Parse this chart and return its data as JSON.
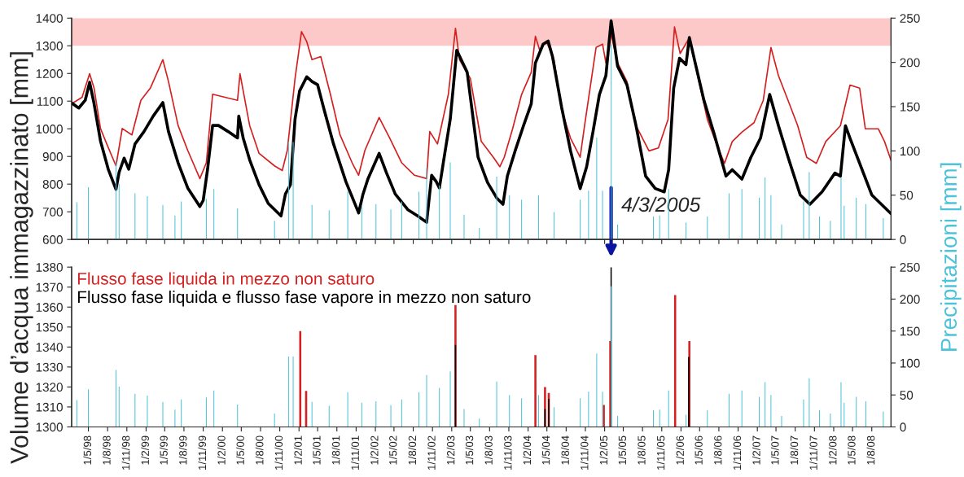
{
  "chart_data": [
    {
      "type": "line",
      "ylabel": "Volume d’acqua immagazzinato [mm]",
      "y2label": "Precipitazioni [mm]",
      "xlim": [
        "1998-02-10",
        "2008-11-01"
      ],
      "xticks": [
        {
          "value": "1998-05-01",
          "label": null
        },
        {
          "value": "1998-08-01",
          "label": null
        },
        {
          "value": "1998-11-01",
          "label": null
        },
        {
          "value": "1999-02-01",
          "label": null
        },
        {
          "value": "1999-05-01",
          "label": null
        },
        {
          "value": "1999-08-01",
          "label": null
        },
        {
          "value": "1999-11-01",
          "label": null
        },
        {
          "value": "2000-02-01",
          "label": null
        },
        {
          "value": "2000-05-01",
          "label": null
        },
        {
          "value": "2000-08-01",
          "label": null
        },
        {
          "value": "2000-11-01",
          "label": null
        },
        {
          "value": "2001-02-01",
          "label": null
        },
        {
          "value": "2001-05-01",
          "label": null
        },
        {
          "value": "2001-08-01",
          "label": null
        },
        {
          "value": "2001-11-01",
          "label": null
        },
        {
          "value": "2002-02-01",
          "label": null
        },
        {
          "value": "2002-05-01",
          "label": null
        },
        {
          "value": "2002-08-01",
          "label": null
        },
        {
          "value": "2002-11-01",
          "label": null
        },
        {
          "value": "2003-02-01",
          "label": null
        },
        {
          "value": "2003-05-01",
          "label": null
        },
        {
          "value": "2003-08-01",
          "label": null
        },
        {
          "value": "2003-11-01",
          "label": null
        },
        {
          "value": "2004-02-01",
          "label": null
        },
        {
          "value": "2004-05-01",
          "label": null
        },
        {
          "value": "2004-08-01",
          "label": null
        },
        {
          "value": "2004-11-01",
          "label": null
        },
        {
          "value": "2005-02-01",
          "label": null
        },
        {
          "value": "2005-05-01",
          "label": null
        },
        {
          "value": "2005-08-01",
          "label": null
        },
        {
          "value": "2005-11-01",
          "label": null
        },
        {
          "value": "2006-02-01",
          "label": null
        },
        {
          "value": "2006-05-01",
          "label": null
        },
        {
          "value": "2006-08-01",
          "label": null
        },
        {
          "value": "2006-11-01",
          "label": null
        },
        {
          "value": "2007-02-01",
          "label": null
        },
        {
          "value": "2007-05-01",
          "label": null
        },
        {
          "value": "2007-08-01",
          "label": null
        },
        {
          "value": "2007-11-01",
          "label": null
        },
        {
          "value": "2008-02-01",
          "label": null
        },
        {
          "value": "2008-05-01",
          "label": null
        },
        {
          "value": "2008-08-01",
          "label": null
        }
      ],
      "ylim": [
        600,
        1400
      ],
      "yticks": [
        600,
        700,
        800,
        900,
        1000,
        1100,
        1200,
        1300,
        1400
      ],
      "y2lim": [
        0,
        250
      ],
      "y2ticks": [
        0,
        50,
        100,
        150,
        200,
        250
      ],
      "tick_labels": "y",
      "bands": [
        {
          "axis": "y",
          "from": 1300,
          "to": 1400,
          "color": "#fcc8c8"
        }
      ],
      "annotations": [
        {
          "text": "4/3/2005",
          "x": "2005-03-04",
          "y": 795
        }
      ],
      "series": [
        {
          "type": "bar",
          "axis": "y2",
          "color": "#4cc3da",
          "x": [
            "1998-03-07",
            "1998-05-01",
            "1998-09-10",
            "1998-09-25",
            "1998-12-10",
            "1999-02-07",
            "1999-04-22",
            "1999-06-19",
            "1999-07-19",
            "1999-11-16",
            "1999-12-22",
            "2000-04-13",
            "2000-10-07",
            "2000-12-13",
            "2001-01-04",
            "2001-04-04",
            "2001-06-25",
            "2001-09-22",
            "2001-11-28",
            "2002-02-04",
            "2002-04-16",
            "2002-06-07",
            "2002-08-28",
            "2002-10-04",
            "2002-12-04",
            "2003-01-25",
            "2003-04-01",
            "2003-06-13",
            "2003-09-04",
            "2003-11-04",
            "2004-01-01",
            "2004-03-22",
            "2004-06-04",
            "2004-10-07",
            "2004-11-16",
            "2004-12-25",
            "2005-01-22",
            "2005-03-04",
            "2005-04-04",
            "2005-09-22",
            "2005-10-22",
            "2005-12-04",
            "2006-02-25",
            "2006-06-07",
            "2006-09-19",
            "2006-11-19",
            "2007-02-10",
            "2007-03-10",
            "2007-04-07",
            "2007-05-28",
            "2007-09-10",
            "2007-10-07",
            "2007-11-25",
            "2008-01-16",
            "2008-03-07",
            "2008-03-22",
            "2008-05-19",
            "2008-07-04",
            "2008-09-25"
          ],
          "values": [
            42,
            59,
            89,
            63,
            52,
            49,
            39,
            27,
            43,
            46,
            57,
            35,
            21,
            110,
            110,
            39,
            33,
            54,
            38,
            40,
            34,
            43,
            54,
            81,
            61,
            87,
            28,
            13,
            71,
            50,
            45,
            50,
            31,
            45,
            55,
            115,
            55,
            220,
            17,
            26,
            27,
            57,
            19,
            26,
            52,
            57,
            47,
            70,
            50,
            17,
            43,
            76,
            26,
            21,
            70,
            38,
            47,
            40,
            24
          ]
        },
        {
          "color": "#d42020",
          "x": [
            "1998-02-13",
            "1998-04-01",
            "1998-05-07",
            "1998-05-28",
            "1998-06-28",
            "1998-07-28",
            "1998-09-10",
            "1998-09-25",
            "1998-10-10",
            "1998-11-25",
            "1999-01-07",
            "1999-02-22",
            "1999-04-22",
            "1999-05-19",
            "1999-07-04",
            "1999-08-19",
            "1999-10-16",
            "1999-11-16",
            "1999-12-16",
            "2000-02-13",
            "2000-04-13",
            "2000-04-25",
            "2000-06-10",
            "2000-07-25",
            "2000-10-07",
            "2000-11-13",
            "2000-12-07",
            "2001-01-13",
            "2001-02-13",
            "2001-03-10",
            "2001-04-04",
            "2001-05-16",
            "2001-07-01",
            "2001-08-16",
            "2001-10-13",
            "2001-11-13",
            "2001-12-13",
            "2002-02-19",
            "2002-04-10",
            "2002-06-07",
            "2002-08-07",
            "2002-10-04",
            "2002-10-19",
            "2002-11-25",
            "2003-01-16",
            "2003-02-19",
            "2003-03-10",
            "2003-05-01",
            "2003-06-22",
            "2003-08-19",
            "2003-09-19",
            "2003-10-10",
            "2003-11-19",
            "2004-01-01",
            "2004-02-16",
            "2004-03-07",
            "2004-03-28",
            "2004-04-28",
            "2004-06-04",
            "2004-07-10",
            "2004-08-22",
            "2004-10-07",
            "2004-10-28",
            "2004-12-22",
            "2005-01-22",
            "2005-02-07",
            "2005-03-04",
            "2005-04-04",
            "2005-05-19",
            "2005-07-01",
            "2005-09-01",
            "2005-10-16",
            "2005-12-01",
            "2006-01-01",
            "2006-01-28",
            "2006-03-13",
            "2006-04-25",
            "2006-06-07",
            "2006-07-22",
            "2006-08-28",
            "2006-10-04",
            "2006-11-19",
            "2007-01-16",
            "2007-03-01",
            "2007-04-07",
            "2007-05-13",
            "2007-06-28",
            "2007-08-13",
            "2007-09-25",
            "2007-11-10",
            "2007-12-25",
            "2008-03-04",
            "2008-04-19",
            "2008-06-04",
            "2008-07-01",
            "2008-09-01",
            "2008-10-01",
            "2008-11-01"
          ],
          "values": [
            1092,
            1114,
            1199,
            1148,
            1001,
            945,
            866,
            933,
            1001,
            978,
            1103,
            1148,
            1250,
            1171,
            1012,
            922,
            820,
            877,
            1125,
            1114,
            1103,
            1199,
            1012,
            911,
            866,
            849,
            922,
            1182,
            1351,
            1315,
            1250,
            1261,
            1125,
            978,
            877,
            832,
            922,
            1041,
            967,
            877,
            832,
            820,
            990,
            945,
            1125,
            1363,
            1250,
            1182,
            955,
            897,
            863,
            897,
            1000,
            1124,
            1204,
            1334,
            1283,
            1317,
            1249,
            1068,
            966,
            897,
            1011,
            1294,
            1306,
            1238,
            1343,
            1238,
            1170,
            1011,
            920,
            931,
            1034,
            1368,
            1272,
            1329,
            1181,
            1034,
            943,
            875,
            954,
            988,
            1022,
            1102,
            1294,
            1192,
            1102,
            1011,
            897,
            875,
            954,
            1011,
            1158,
            1147,
            1000,
            1000,
            954,
            886
          ]
        },
        {
          "color": "#000000",
          "x": [
            "1998-02-13",
            "1998-03-16",
            "1998-04-16",
            "1998-05-07",
            "1998-05-28",
            "1998-06-28",
            "1998-08-04",
            "1998-09-10",
            "1998-09-25",
            "1998-10-19",
            "1998-11-10",
            "1998-12-10",
            "1999-01-22",
            "1999-03-07",
            "1999-04-22",
            "1999-05-19",
            "1999-07-04",
            "1999-08-19",
            "1999-10-16",
            "1999-11-01",
            "1999-11-22",
            "1999-12-16",
            "2000-01-13",
            "2000-02-28",
            "2000-04-13",
            "2000-04-19",
            "2000-05-10",
            "2000-06-10",
            "2000-07-25",
            "2000-09-07",
            "2000-11-07",
            "2000-11-28",
            "2000-12-22",
            "2001-01-13",
            "2001-02-04",
            "2001-03-10",
            "2001-04-04",
            "2001-05-01",
            "2001-06-01",
            "2001-07-16",
            "2001-09-13",
            "2001-11-13",
            "2001-12-04",
            "2001-12-28",
            "2002-02-19",
            "2002-03-25",
            "2002-05-07",
            "2002-07-07",
            "2002-08-22",
            "2002-10-04",
            "2002-10-28",
            "2002-11-19",
            "2002-12-04",
            "2002-12-25",
            "2003-01-25",
            "2003-02-25",
            "2003-04-16",
            "2003-06-07",
            "2003-07-22",
            "2003-09-04",
            "2003-10-04",
            "2003-10-25",
            "2003-12-01",
            "2004-01-10",
            "2004-02-16",
            "2004-03-07",
            "2004-04-13",
            "2004-05-07",
            "2004-05-28",
            "2004-07-10",
            "2004-08-22",
            "2004-10-07",
            "2004-11-07",
            "2004-12-07",
            "2005-01-07",
            "2005-02-07",
            "2005-03-04",
            "2005-04-04",
            "2005-05-19",
            "2005-07-01",
            "2005-08-16",
            "2005-10-01",
            "2005-11-13",
            "2005-12-04",
            "2005-12-28",
            "2006-01-25",
            "2006-02-25",
            "2006-03-13",
            "2006-04-10",
            "2006-05-22",
            "2006-07-07",
            "2006-09-04",
            "2006-10-04",
            "2006-11-19",
            "2007-01-01",
            "2007-02-16",
            "2007-04-01",
            "2007-05-13",
            "2007-06-28",
            "2007-08-25",
            "2007-10-10",
            "2007-12-07",
            "2008-02-07",
            "2008-03-04",
            "2008-03-28",
            "2008-04-19",
            "2008-06-04",
            "2008-08-01",
            "2008-09-16",
            "2008-11-01"
          ],
          "values": [
            1092,
            1075,
            1103,
            1168,
            1092,
            956,
            854,
            781,
            843,
            894,
            854,
            945,
            990,
            1046,
            1095,
            990,
            877,
            786,
            719,
            741,
            854,
            1012,
            1012,
            990,
            967,
            1046,
            967,
            888,
            798,
            730,
            685,
            764,
            798,
            1035,
            1137,
            1188,
            1171,
            1159,
            1069,
            945,
            809,
            696,
            764,
            820,
            911,
            843,
            764,
            707,
            685,
            662,
            832,
            809,
            786,
            888,
            1035,
            1284,
            1204,
            897,
            806,
            750,
            727,
            829,
            920,
            1011,
            1090,
            1238,
            1306,
            1317,
            1260,
            1079,
            920,
            784,
            863,
            988,
            1124,
            1192,
            1390,
            1226,
            1158,
            1011,
            829,
            784,
            772,
            852,
            1147,
            1255,
            1232,
            1330,
            1238,
            1102,
            988,
            829,
            852,
            818,
            897,
            966,
            1124,
            1011,
            897,
            761,
            727,
            772,
            840,
            829,
            1011,
            966,
            875,
            761,
            727,
            693
          ]
        }
      ]
    },
    {
      "type": "bar",
      "xlim": [
        "1998-02-10",
        "2008-11-01"
      ],
      "xticks": [
        {
          "value": "1998-05-01",
          "label": "1/5/98"
        },
        {
          "value": "1998-08-01",
          "label": "1/8/98"
        },
        {
          "value": "1998-11-01",
          "label": "1/11/98"
        },
        {
          "value": "1999-02-01",
          "label": "1/2/99"
        },
        {
          "value": "1999-05-01",
          "label": "1/5/99"
        },
        {
          "value": "1999-08-01",
          "label": "1/8/99"
        },
        {
          "value": "1999-11-01",
          "label": "1/11/99"
        },
        {
          "value": "2000-02-01",
          "label": "1/2/00"
        },
        {
          "value": "2000-05-01",
          "label": "1/5/00"
        },
        {
          "value": "2000-08-01",
          "label": "1/8/00"
        },
        {
          "value": "2000-11-01",
          "label": "1/11/00"
        },
        {
          "value": "2001-02-01",
          "label": "1/2/01"
        },
        {
          "value": "2001-05-01",
          "label": "1/5/01"
        },
        {
          "value": "2001-08-01",
          "label": "1/8/01"
        },
        {
          "value": "2001-11-01",
          "label": "1/11/01"
        },
        {
          "value": "2002-02-01",
          "label": "1/2/02"
        },
        {
          "value": "2002-05-01",
          "label": "1/5/02"
        },
        {
          "value": "2002-08-01",
          "label": "1/8/02"
        },
        {
          "value": "2002-11-01",
          "label": "1/11/02"
        },
        {
          "value": "2003-02-01",
          "label": "1/2/03"
        },
        {
          "value": "2003-05-01",
          "label": "1/5/03"
        },
        {
          "value": "2003-08-01",
          "label": "1/8/03"
        },
        {
          "value": "2003-11-01",
          "label": "1/11/03"
        },
        {
          "value": "2004-02-01",
          "label": "1/2/04"
        },
        {
          "value": "2004-05-01",
          "label": "1/5/04"
        },
        {
          "value": "2004-08-01",
          "label": "1/8/04"
        },
        {
          "value": "2004-11-01",
          "label": "1/11/04"
        },
        {
          "value": "2005-02-01",
          "label": "1/2/05"
        },
        {
          "value": "2005-05-01",
          "label": "1/5/05"
        },
        {
          "value": "2005-08-01",
          "label": "1/8/05"
        },
        {
          "value": "2005-11-01",
          "label": "1/11/05"
        },
        {
          "value": "2006-02-01",
          "label": "1/2/06"
        },
        {
          "value": "2006-05-01",
          "label": "1/5/06"
        },
        {
          "value": "2006-08-01",
          "label": "1/8/06"
        },
        {
          "value": "2006-11-01",
          "label": "1/11/06"
        },
        {
          "value": "2007-02-01",
          "label": "1/2/07"
        },
        {
          "value": "2007-05-01",
          "label": "1/5/07"
        },
        {
          "value": "2007-08-01",
          "label": "1/8/07"
        },
        {
          "value": "2007-11-01",
          "label": "1/11/07"
        },
        {
          "value": "2008-02-01",
          "label": "1/2/08"
        },
        {
          "value": "2008-05-01",
          "label": "1/5/08"
        },
        {
          "value": "2008-08-01",
          "label": "1/8/08"
        }
      ],
      "ylim": [
        1300,
        1380
      ],
      "yticks": [
        1300,
        1310,
        1320,
        1330,
        1340,
        1350,
        1360,
        1370,
        1380
      ],
      "y2lim": [
        0,
        250
      ],
      "y2ticks": [
        0,
        50,
        100,
        150,
        200,
        250
      ],
      "legend": "top left",
      "series": [
        {
          "type": "bar",
          "axis": "y2",
          "color": "#4cc3da",
          "x": [
            "1998-03-07",
            "1998-05-01",
            "1998-09-10",
            "1998-09-25",
            "1998-12-10",
            "1999-02-07",
            "1999-04-22",
            "1999-06-19",
            "1999-07-19",
            "1999-11-16",
            "1999-12-22",
            "2000-04-13",
            "2000-10-07",
            "2000-12-13",
            "2001-01-04",
            "2001-04-04",
            "2001-06-25",
            "2001-09-22",
            "2001-11-28",
            "2002-02-04",
            "2002-04-16",
            "2002-06-07",
            "2002-08-28",
            "2002-10-04",
            "2002-12-04",
            "2003-01-25",
            "2003-04-01",
            "2003-06-13",
            "2003-09-04",
            "2003-11-04",
            "2004-01-01",
            "2004-03-22",
            "2004-06-04",
            "2004-10-07",
            "2004-11-16",
            "2004-12-25",
            "2005-01-22",
            "2005-03-04",
            "2005-04-04",
            "2005-09-22",
            "2005-10-22",
            "2005-12-04",
            "2006-02-25",
            "2006-06-07",
            "2006-09-19",
            "2006-11-19",
            "2007-02-10",
            "2007-03-10",
            "2007-04-07",
            "2007-05-28",
            "2007-09-10",
            "2007-10-07",
            "2007-11-25",
            "2008-01-16",
            "2008-03-07",
            "2008-03-22",
            "2008-05-19",
            "2008-07-04",
            "2008-09-25"
          ],
          "values": [
            42,
            59,
            89,
            63,
            52,
            49,
            39,
            27,
            43,
            46,
            57,
            35,
            21,
            110,
            110,
            39,
            33,
            54,
            38,
            40,
            34,
            43,
            54,
            81,
            61,
            87,
            28,
            13,
            71,
            50,
            45,
            50,
            31,
            45,
            55,
            115,
            55,
            220,
            17,
            26,
            27,
            57,
            19,
            26,
            52,
            57,
            47,
            70,
            50,
            17,
            43,
            76,
            26,
            21,
            70,
            38,
            47,
            40,
            24
          ]
        },
        {
          "name": "Flusso fase liquida in mezzo non saturo",
          "color": "#d42020",
          "x": [
            "2001-02-07",
            "2001-03-07",
            "2003-02-19",
            "2004-03-07",
            "2004-04-22",
            "2004-05-10",
            "2005-01-28",
            "2005-02-28",
            "2006-01-04",
            "2006-03-13"
          ],
          "values": [
            1348,
            1318,
            1361,
            1336,
            1320,
            1317,
            1311,
            1343,
            1366,
            1343
          ]
        },
        {
          "name": "Flusso fase liquida e flusso fase vapore in mezzo non saturo",
          "color": "#000000",
          "x": [
            "2003-02-19",
            "2004-04-22",
            "2004-05-10",
            "2005-03-04",
            "2006-03-10"
          ],
          "values": [
            1341,
            1309,
            1314,
            1380,
            1335
          ]
        }
      ]
    }
  ]
}
